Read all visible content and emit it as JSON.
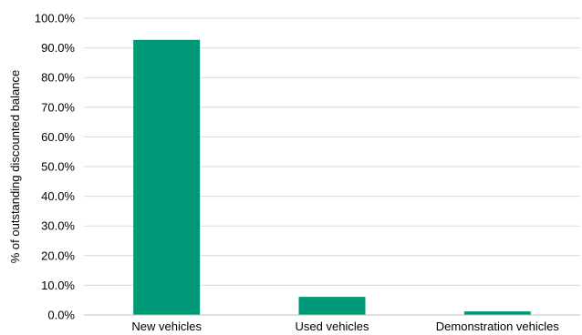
{
  "chart_data": {
    "type": "bar",
    "title": "",
    "xlabel": "",
    "ylabel": "% of outstanding discounted balance",
    "categories": [
      "New vehicles",
      "Used vehicles",
      "Demonstration vehicles"
    ],
    "values": [
      92.7,
      6.1,
      1.2
    ],
    "ylim": [
      0,
      100
    ],
    "yticks": [
      "0.0%",
      "10.0%",
      "20.0%",
      "30.0%",
      "40.0%",
      "50.0%",
      "60.0%",
      "70.0%",
      "80.0%",
      "90.0%",
      "100.0%"
    ],
    "grid": true,
    "legend": "none",
    "bar_color": "#009977"
  }
}
